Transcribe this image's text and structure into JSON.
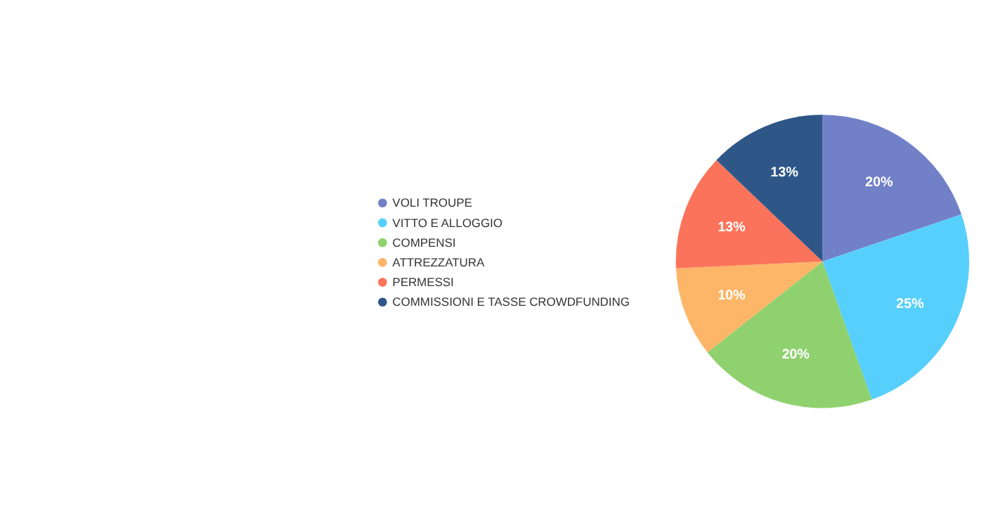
{
  "chart_data": {
    "type": "pie",
    "categories": [
      "VOLI TROUPE",
      "VITTO E ALLOGGIO",
      "COMPENSI",
      "ATTREZZATURA",
      "PERMESSI",
      "COMMISSIONI E TASSE CROWDFUNDING"
    ],
    "values": [
      20,
      25,
      20,
      10,
      13,
      13
    ],
    "value_labels": [
      "20%",
      "25%",
      "20%",
      "10%",
      "13%",
      "13%"
    ],
    "colors": [
      "#7280c8",
      "#56cffc",
      "#8fd16f",
      "#fdb567",
      "#fb735a",
      "#2e5788"
    ],
    "legend": "left"
  }
}
